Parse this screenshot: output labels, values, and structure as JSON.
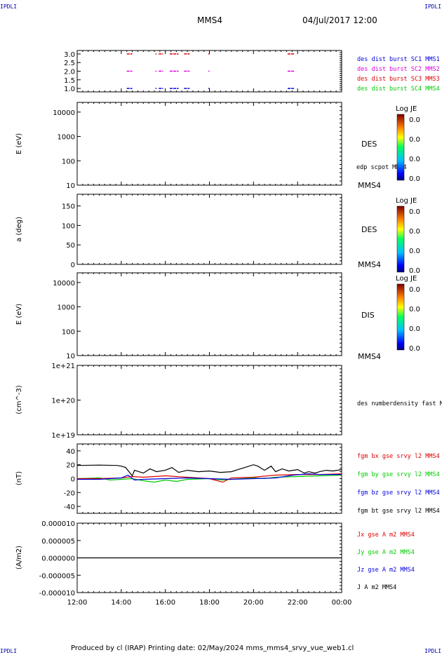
{
  "corners": {
    "top_left": "IPDLI",
    "top_right": "IPDLI",
    "bottom_left": "IPDLI",
    "bottom_right": "IPDLI"
  },
  "header": {
    "spacecraft": "MMS4",
    "datetime": "04/Jul/2017 12:00"
  },
  "footer": {
    "text": "Produced by cl (IRAP)   Printing date: 02/May/2024   mms_mms4_srvy_vue_web1.cl"
  },
  "time_axis": {
    "ticks": [
      "12:00",
      "14:00",
      "16:00",
      "18:00",
      "20:00",
      "22:00",
      "00:00"
    ]
  },
  "colors": {
    "red": "#dd0000",
    "magenta": "#dd00dd",
    "blue": "#0000dd",
    "green": "#00cc00",
    "black": "#000000"
  },
  "chart_data": [
    {
      "id": "burst",
      "type": "scatter",
      "y_ticks": [
        "3.0",
        "2.5",
        "2.0",
        "1.5",
        "1.0"
      ],
      "ylim": [
        0.8,
        3.2
      ],
      "legend": [
        {
          "label": "des dist burst SC1 MMS1",
          "color": "#0000dd"
        },
        {
          "label": "des dist burst SC2 MMS2",
          "color": "#dd00dd"
        },
        {
          "label": "des dist burst SC3 MMS3",
          "color": "#dd0000"
        },
        {
          "label": "des dist burst SC4 MMS4",
          "color": "#00cc00"
        }
      ],
      "series": [
        {
          "y": 3.0,
          "color": "#dd0000",
          "intervals": [
            [
              14.25,
              14.5
            ],
            [
              15.55,
              15.6
            ],
            [
              15.7,
              15.9
            ],
            [
              16.2,
              16.6
            ],
            [
              16.85,
              17.1
            ],
            [
              17.95,
              18.0
            ],
            [
              21.55,
              21.85
            ]
          ]
        },
        {
          "y": 2.0,
          "color": "#dd00dd",
          "intervals": [
            [
              14.25,
              14.5
            ],
            [
              15.55,
              15.6
            ],
            [
              15.7,
              15.9
            ],
            [
              16.2,
              16.6
            ],
            [
              16.85,
              17.1
            ],
            [
              17.95,
              18.0
            ],
            [
              21.55,
              21.85
            ]
          ]
        },
        {
          "y": 1.0,
          "color": "#0000dd",
          "intervals": [
            [
              14.25,
              14.5
            ],
            [
              15.55,
              15.6
            ],
            [
              15.7,
              15.9
            ],
            [
              16.2,
              16.6
            ],
            [
              16.85,
              17.1
            ],
            [
              17.95,
              18.0
            ],
            [
              21.55,
              21.85
            ]
          ]
        }
      ]
    },
    {
      "id": "des_energy",
      "type": "heatmap",
      "ylabel": "E (eV)",
      "log": true,
      "y_ticks": [
        "10000",
        "1000",
        "100",
        "10"
      ],
      "ylim": [
        10,
        25000
      ],
      "label": "DES",
      "cb_title": "Log JE",
      "cb_ticks": [
        "0.0",
        "0.0",
        "0.0",
        "0.0"
      ],
      "side_label": "edp scpot MMS4",
      "bottom_label": "MMS4"
    },
    {
      "id": "des_pitch",
      "type": "heatmap",
      "ylabel": "a (deg)",
      "y_ticks": [
        "150",
        "100",
        "50",
        "0"
      ],
      "ylim": [
        0,
        180
      ],
      "label": "DES",
      "cb_title": "Log JE",
      "cb_ticks": [
        "0.0",
        "0.0",
        "0.0",
        "0.0"
      ],
      "bottom_label": "MMS4"
    },
    {
      "id": "dis_energy",
      "type": "heatmap",
      "ylabel": "E (eV)",
      "log": true,
      "y_ticks": [
        "10000",
        "1000",
        "100",
        "10"
      ],
      "ylim": [
        10,
        25000
      ],
      "label": "DIS",
      "cb_title": "Log JE",
      "cb_ticks": [
        "0.0",
        "0.0",
        "0.0",
        "0.0"
      ],
      "bottom_label": "MMS4"
    },
    {
      "id": "density",
      "type": "line",
      "ylabel": "(cm^-3)",
      "y_ticks": [
        "1e+21",
        "1e+20",
        "1e+19"
      ],
      "legend": [
        {
          "label": "des numberdensity fast M",
          "color": "#000000"
        }
      ]
    },
    {
      "id": "fgm",
      "type": "line",
      "ylabel": "(nT)",
      "y_ticks": [
        "40",
        "20",
        "0",
        "-20",
        "-40"
      ],
      "ylim": [
        -50,
        50
      ],
      "legend": [
        {
          "label": "fgm bx gse srvy l2 MMS4",
          "color": "#dd0000"
        },
        {
          "label": "fgm by gse srvy l2 MMS4",
          "color": "#00cc00"
        },
        {
          "label": "fgm bz gse srvy l2 MMS4",
          "color": "#0000dd"
        },
        {
          "label": "fgm bt gse srvy l2 MMS4",
          "color": "#000000"
        }
      ],
      "series": [
        {
          "name": "bt",
          "color": "#000000",
          "x": [
            12.0,
            13.0,
            13.8,
            14.0,
            14.2,
            14.5,
            14.6,
            15.0,
            15.3,
            15.6,
            16.0,
            16.3,
            16.6,
            17.0,
            17.5,
            18.0,
            18.5,
            19.0,
            19.3,
            19.6,
            20.0,
            20.2,
            20.5,
            20.8,
            21.0,
            21.3,
            21.6,
            22.0,
            22.3,
            22.5,
            22.8,
            23.0,
            23.3,
            23.6,
            24.0
          ],
          "y": [
            19,
            19.5,
            19,
            18,
            16,
            4,
            12,
            8,
            14,
            10,
            12,
            16,
            9,
            12,
            10,
            11,
            9,
            10,
            13,
            16,
            20,
            18,
            12,
            18,
            10,
            14,
            11,
            13,
            8,
            10,
            8,
            10,
            12,
            11,
            13
          ]
        },
        {
          "name": "bx",
          "color": "#dd0000",
          "x": [
            12.0,
            13.0,
            14.0,
            14.5,
            15.0,
            16.0,
            17.0,
            18.0,
            18.6,
            19.0,
            20.0,
            21.0,
            22.0,
            23.0,
            24.0
          ],
          "y": [
            0,
            0,
            1,
            3,
            2,
            4,
            2,
            0,
            -5,
            1,
            2,
            5,
            6,
            6,
            7
          ]
        },
        {
          "name": "by",
          "color": "#00cc00",
          "x": [
            12.0,
            13.0,
            13.5,
            14.0,
            14.5,
            15.0,
            15.5,
            16.0,
            16.5,
            17.0,
            18.0,
            18.6,
            19.0,
            20.0,
            20.5,
            21.0,
            22.0,
            23.0,
            24.0
          ],
          "y": [
            0,
            1,
            -2,
            -1,
            0,
            -3,
            -5,
            -2,
            -4,
            -1,
            0,
            -2,
            -1,
            1,
            0,
            2,
            3,
            4,
            5
          ]
        },
        {
          "name": "bz",
          "color": "#0000dd",
          "x": [
            12.0,
            13.0,
            14.0,
            14.3,
            14.6,
            15.0,
            16.0,
            17.0,
            18.0,
            19.0,
            20.0,
            21.0,
            21.8,
            22.5,
            23.0,
            24.0
          ],
          "y": [
            -1,
            -1,
            1,
            5,
            -2,
            -1,
            0,
            1,
            0,
            -1,
            0,
            1,
            5,
            7,
            6,
            6
          ]
        }
      ]
    },
    {
      "id": "current",
      "type": "line",
      "ylabel": "(A/m2)",
      "y_ticks": [
        "0.000010",
        "0.000005",
        "0.000000",
        "-0.000005",
        "-0.000010"
      ],
      "ylim": [
        -1e-05,
        1e-05
      ],
      "legend": [
        {
          "label": "Jx gse A m2 MMS4",
          "color": "#dd0000"
        },
        {
          "label": "Jy gse A m2 MMS4",
          "color": "#00cc00"
        },
        {
          "label": "Jz gse A m2 MMS4",
          "color": "#0000dd"
        },
        {
          "label": "J A m2 MMS4",
          "color": "#000000"
        }
      ],
      "series": [
        {
          "name": "J",
          "color": "#000000",
          "x": [
            12,
            24
          ],
          "y": [
            0,
            0
          ]
        }
      ]
    }
  ]
}
